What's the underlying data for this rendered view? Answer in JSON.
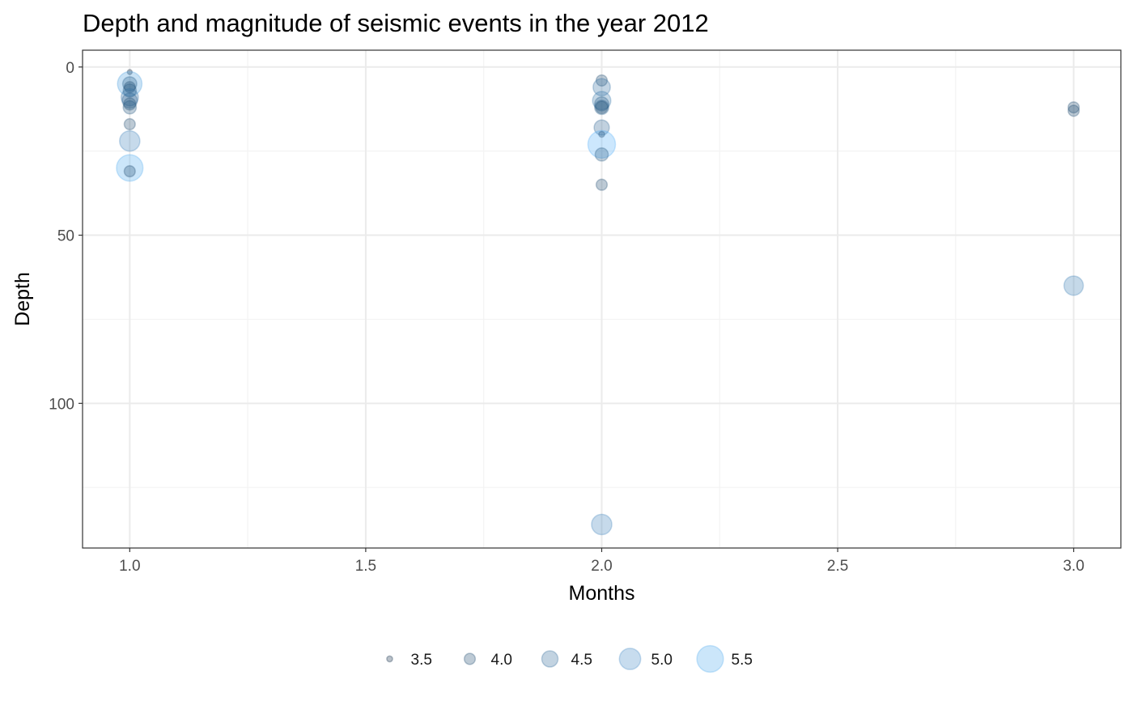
{
  "colors": {
    "low": "#132B43",
    "high": "#56B1F7",
    "grid_major": "#ebebeb",
    "grid_minor": "#f3f3f3",
    "panel_border": "#333333",
    "tick_text": "#4d4d4d"
  },
  "chart_data": {
    "type": "scatter",
    "title": "Depth and magnitude of seismic events in the year 2012",
    "xlabel": "Months",
    "ylabel": "Depth",
    "xlim": [
      0.9,
      3.1
    ],
    "ylim": [
      143,
      -5
    ],
    "y_reversed": true,
    "grid": true,
    "x_ticks": [
      1.0,
      1.5,
      2.0,
      2.5,
      3.0
    ],
    "x_tick_labels": [
      "1.0",
      "1.5",
      "2.0",
      "2.5",
      "3.0"
    ],
    "y_ticks": [
      0,
      50,
      100
    ],
    "y_tick_labels": [
      "0",
      "50",
      "100"
    ],
    "legend": {
      "placement": "bottom",
      "variable": "magnitude",
      "entries": [
        {
          "label": "3.5",
          "value": 3.5
        },
        {
          "label": "4.0",
          "value": 4.0
        },
        {
          "label": "4.5",
          "value": 4.5
        },
        {
          "label": "5.0",
          "value": 5.0
        },
        {
          "label": "5.5",
          "value": 5.5
        }
      ]
    },
    "points": [
      {
        "x": 1,
        "y": 1.5,
        "mag": 3.4
      },
      {
        "x": 1,
        "y": 5,
        "mag": 5.3
      },
      {
        "x": 1,
        "y": 5,
        "mag": 4.3
      },
      {
        "x": 1,
        "y": 6,
        "mag": 4.0
      },
      {
        "x": 1,
        "y": 7,
        "mag": 4.2
      },
      {
        "x": 1,
        "y": 9,
        "mag": 4.6
      },
      {
        "x": 1,
        "y": 10,
        "mag": 4.4
      },
      {
        "x": 1,
        "y": 11,
        "mag": 4.1
      },
      {
        "x": 1,
        "y": 12,
        "mag": 4.2
      },
      {
        "x": 1,
        "y": 17,
        "mag": 4.0
      },
      {
        "x": 1,
        "y": 22,
        "mag": 4.9
      },
      {
        "x": 1,
        "y": 30,
        "mag": 5.5
      },
      {
        "x": 1,
        "y": 31,
        "mag": 4.0
      },
      {
        "x": 2,
        "y": 4,
        "mag": 4.0
      },
      {
        "x": 2,
        "y": 6,
        "mag": 4.6
      },
      {
        "x": 2,
        "y": 10,
        "mag": 4.7
      },
      {
        "x": 2,
        "y": 11,
        "mag": 4.3
      },
      {
        "x": 2,
        "y": 12,
        "mag": 4.3
      },
      {
        "x": 2,
        "y": 12,
        "mag": 4.1
      },
      {
        "x": 2,
        "y": 18,
        "mag": 4.4
      },
      {
        "x": 2,
        "y": 20,
        "mag": 3.5
      },
      {
        "x": 2,
        "y": 23,
        "mag": 5.6
      },
      {
        "x": 2,
        "y": 26,
        "mag": 4.2
      },
      {
        "x": 2,
        "y": 35,
        "mag": 4.0
      },
      {
        "x": 2,
        "y": 136,
        "mag": 4.9
      },
      {
        "x": 3,
        "y": 12,
        "mag": 4.0
      },
      {
        "x": 3,
        "y": 13,
        "mag": 4.0
      },
      {
        "x": 3,
        "y": 65,
        "mag": 4.8
      }
    ]
  }
}
